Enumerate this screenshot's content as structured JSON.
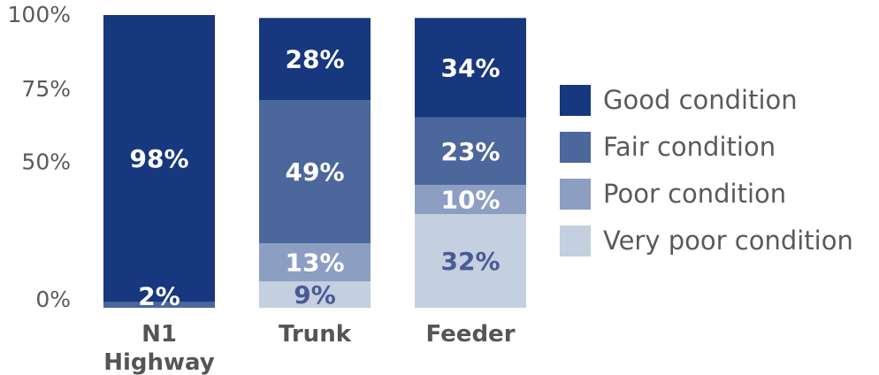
{
  "chart_data": {
    "type": "bar",
    "stacked": true,
    "percent": true,
    "categories": [
      [
        "N1",
        "Highway"
      ],
      [
        "Trunk"
      ],
      [
        "Feeder"
      ]
    ],
    "series": [
      {
        "name": "Very poor condition",
        "color": "#c4cfdf",
        "label_color": "#4a5a96",
        "values": [
          0,
          9,
          32
        ],
        "labels": [
          "",
          "9%",
          "32%"
        ]
      },
      {
        "name": "Poor condition",
        "color": "#8c9fc3",
        "label_color": "#ffffff",
        "values": [
          0,
          13,
          10
        ],
        "labels": [
          "",
          "13%",
          "10%"
        ]
      },
      {
        "name": "Fair condition",
        "color": "#4b679b",
        "label_color": "#ffffff",
        "values": [
          2,
          49,
          23
        ],
        "labels": [
          "2%",
          "49%",
          "23%"
        ]
      },
      {
        "name": "Good condition",
        "color": "#17377e",
        "label_color": "#ffffff",
        "values": [
          98,
          28,
          34
        ],
        "labels": [
          "98%",
          "28%",
          "34%"
        ]
      }
    ],
    "y_ticks": [
      {
        "value": 0,
        "label": "0%"
      },
      {
        "value": 50,
        "label": "50%"
      },
      {
        "value": 75,
        "label": "75%"
      },
      {
        "value": 100,
        "label": "100%"
      }
    ],
    "ylim": [
      0,
      100
    ],
    "legend_position": "right",
    "grid": false
  }
}
